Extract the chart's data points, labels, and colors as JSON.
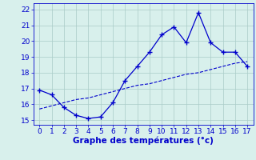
{
  "x": [
    0,
    1,
    2,
    3,
    4,
    5,
    6,
    7,
    8,
    9,
    10,
    11,
    12,
    13,
    14,
    15,
    16,
    17
  ],
  "y_temp": [
    16.9,
    16.6,
    15.8,
    15.3,
    15.1,
    15.2,
    16.1,
    17.5,
    18.4,
    19.3,
    20.4,
    20.9,
    19.9,
    21.8,
    19.9,
    19.3,
    19.3,
    18.4
  ],
  "y_trend": [
    15.7,
    15.9,
    16.1,
    16.3,
    16.4,
    16.6,
    16.8,
    17.0,
    17.2,
    17.3,
    17.5,
    17.7,
    17.9,
    18.0,
    18.2,
    18.4,
    18.6,
    18.7
  ],
  "line_color": "#0000cc",
  "bg_color": "#d8f0ec",
  "grid_color": "#aaccc8",
  "xlabel": "Graphe des températures (°c)",
  "xlim": [
    -0.5,
    17.5
  ],
  "ylim": [
    14.7,
    22.4
  ],
  "yticks": [
    15,
    16,
    17,
    18,
    19,
    20,
    21,
    22
  ],
  "xticks": [
    0,
    1,
    2,
    3,
    4,
    5,
    6,
    7,
    8,
    9,
    10,
    11,
    12,
    13,
    14,
    15,
    16,
    17
  ],
  "tick_fontsize": 6.5,
  "xlabel_fontsize": 7.5
}
